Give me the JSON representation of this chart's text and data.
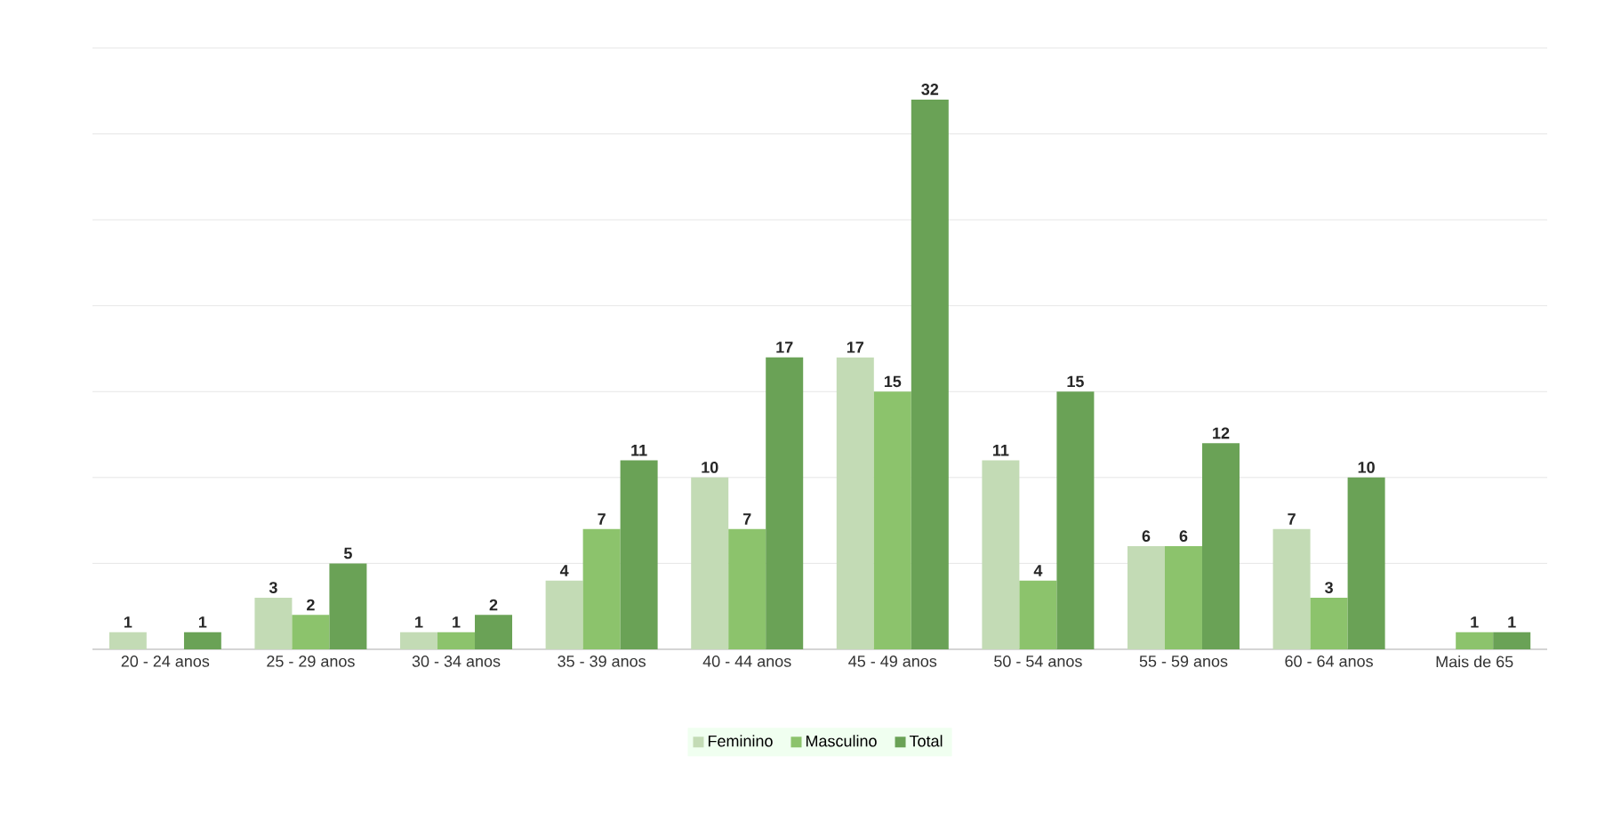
{
  "chart_data": {
    "type": "bar",
    "categories": [
      "20 - 24 anos",
      "25 - 29 anos",
      "30 - 34 anos",
      "35 - 39 anos",
      "40 - 44 anos",
      "45 - 49 anos",
      "50 - 54 anos",
      "55 - 59 anos",
      "60 - 64 anos",
      "Mais de 65"
    ],
    "series": [
      {
        "name": "Feminino",
        "color": "#c3dbb5",
        "values": [
          1,
          3,
          1,
          4,
          10,
          17,
          11,
          6,
          7,
          null
        ]
      },
      {
        "name": "Masculino",
        "color": "#8cc36c",
        "values": [
          null,
          2,
          1,
          7,
          7,
          15,
          4,
          6,
          3,
          1
        ]
      },
      {
        "name": "Total",
        "color": "#6aa256",
        "values": [
          1,
          5,
          2,
          11,
          17,
          32,
          15,
          12,
          10,
          1
        ]
      }
    ],
    "ylim": [
      0,
      35
    ],
    "yticks": [
      {
        "value": 0,
        "label": null
      },
      {
        "value": 5,
        "label": null
      },
      {
        "value": 10,
        "label": null
      },
      {
        "value": 15,
        "label": null
      },
      {
        "value": 20,
        "label": null
      },
      {
        "value": 25,
        "label": null
      },
      {
        "value": 30,
        "label": null
      },
      {
        "value": 35,
        "label": null
      }
    ],
    "tick_labels": "x",
    "grid": "y",
    "legend": "bottom",
    "data_labels": true
  }
}
